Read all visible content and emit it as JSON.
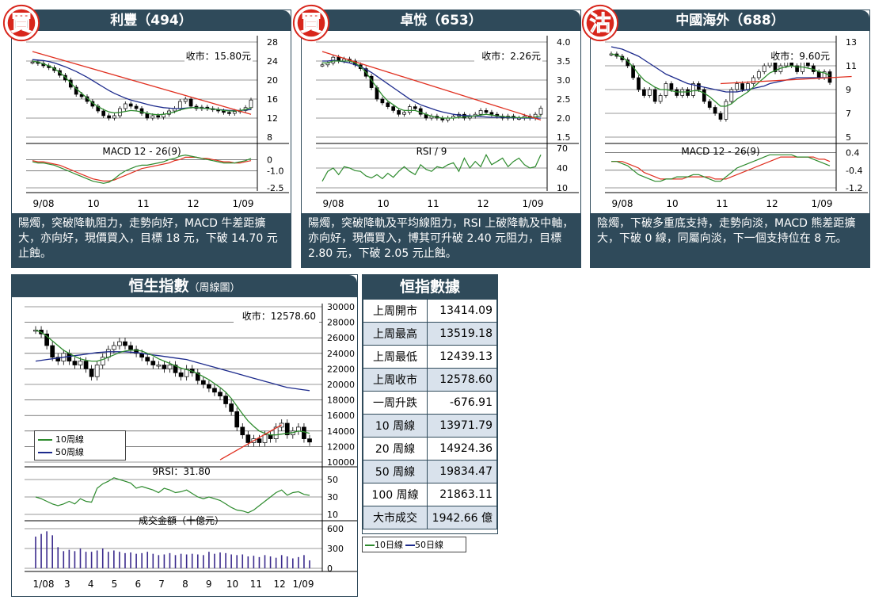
{
  "stocks": [
    {
      "badge": "買",
      "title": "利豐（494）",
      "close_label": "收市：15.80元",
      "indicator_label": "MACD 12 - 26(9)",
      "description": "陽燭，突破降軌阻力，走勢向好，MACD 牛差距擴大，亦向好，現價買入，目標 18 元，下破 14.70 元止蝕。",
      "x_ticks": [
        "9/08",
        "10",
        "11",
        "12",
        "1/09"
      ],
      "price_ticks": [
        "28",
        "24",
        "20",
        "16",
        "12",
        "8"
      ],
      "ind_ticks": [
        "0",
        "-1.0",
        "-2.5"
      ]
    },
    {
      "badge": "買",
      "title": "卓悅（653）",
      "close_label": "收市：2.26元",
      "indicator_label": "RSI / 9",
      "description": "陽燭，突破降軌及平均線阻力，RSI 上破降軌及中軸，亦向好，現價買入，博其可升破 2.40 元阻力，目標 2.80 元，下破 2.05 元止蝕。",
      "x_ticks": [
        "9/08",
        "10",
        "11",
        "12",
        "1/09"
      ],
      "price_ticks": [
        "4.0",
        "3.5",
        "3.0",
        "2.5",
        "2.0",
        "1.5"
      ],
      "ind_ticks": [
        "70",
        "40",
        "10"
      ]
    },
    {
      "badge": "沽",
      "title": "中國海外（688）",
      "close_label": "收市：9.60元",
      "indicator_label": "MACD 12 - 26(9)",
      "description": "陰燭，下破多重底支持，走勢向淡，MACD 熊差距擴大，下破 0 線，同屬向淡，下一個支持位在 8 元。",
      "x_ticks": [
        "9/08",
        "10",
        "11",
        "12",
        "1/09"
      ],
      "price_ticks": [
        "13",
        "11",
        "9",
        "7",
        "5"
      ],
      "ind_ticks": [
        "0.4",
        "-0.4",
        "-1.2"
      ]
    }
  ],
  "hsi": {
    "title": "恒生指數",
    "subtitle": "（周線圖）",
    "close_label": "收市：12578.60",
    "legend": [
      "10周線",
      "50周線"
    ],
    "rsi_label": "9RSI：31.80",
    "volume_label": "成交金額（十億元）",
    "price_ticks": [
      "30000",
      "28000",
      "26000",
      "24000",
      "22000",
      "20000",
      "18000",
      "16000",
      "14000",
      "12000",
      "10000"
    ],
    "rsi_ticks": [
      "50",
      "30",
      "10"
    ],
    "volume_ticks": [
      "600",
      "300",
      "0"
    ],
    "x_ticks": [
      "1/08",
      "3",
      "4",
      "5",
      "6",
      "7",
      "8",
      "9",
      "10",
      "11",
      "12",
      "1/09"
    ]
  },
  "stats": {
    "title": "恒指數據",
    "rows": [
      {
        "k": "上周開市",
        "v": "13414.09"
      },
      {
        "k": "上周最高",
        "v": "13519.18"
      },
      {
        "k": "上周最低",
        "v": "12439.13"
      },
      {
        "k": "上周收市",
        "v": "12578.60"
      },
      {
        "k": "一周升跌",
        "v": "-676.91"
      },
      {
        "k": "10 周線",
        "v": "13971.79"
      },
      {
        "k": "20 周線",
        "v": "14924.36"
      },
      {
        "k": "50 周線",
        "v": "19834.47"
      },
      {
        "k": "100 周線",
        "v": "21863.11"
      },
      {
        "k": "大市成交",
        "v": "1942.66 億"
      }
    ],
    "legend": [
      "10日線",
      "50日線"
    ]
  },
  "colors": {
    "panel": "#2f4a5a",
    "ma_short": "#2e8b2e",
    "ma_long": "#1c2a8c",
    "trend": "#e03020",
    "badge_red": "#d8261c"
  },
  "chart_data": [
    {
      "type": "candlestick",
      "title": "利豐（494）",
      "x_ticks": [
        "9/08",
        "10",
        "11",
        "12",
        "1/09"
      ],
      "ylim": [
        8,
        28
      ],
      "last_close": 15.8,
      "close_path": [
        23.8,
        23.5,
        23.0,
        22.6,
        22.0,
        21.0,
        20.0,
        18.5,
        17.0,
        16.5,
        15.5,
        14.5,
        13.5,
        12.5,
        12.0,
        12.5,
        14.0,
        15.0,
        14.5,
        14.0,
        13.0,
        12.0,
        12.5,
        12.2,
        12.8,
        13.5,
        14.0,
        15.5,
        16.0,
        14.5,
        14.0,
        14.3,
        14.0,
        13.8,
        13.5,
        13.2,
        13.0,
        13.4,
        13.6,
        14.2,
        15.8
      ],
      "ma_short": [
        24.0,
        23.8,
        23.4,
        23.0,
        22.4,
        21.6,
        20.6,
        19.4,
        18.2,
        17.2,
        16.2,
        15.2,
        14.4,
        13.8,
        13.3,
        13.1,
        13.2,
        13.4,
        13.6,
        13.5,
        13.3,
        13.0,
        12.8,
        12.7,
        12.8,
        13.0,
        13.3,
        13.7,
        14.0,
        14.2,
        14.2,
        14.1,
        14.0,
        13.9,
        13.8,
        13.6,
        13.5,
        13.5,
        13.6,
        13.8,
        14.2
      ],
      "ma_long": [
        24.3,
        24.2,
        24.1,
        23.9,
        23.6,
        23.2,
        22.8,
        22.3,
        21.8,
        21.2,
        20.6,
        19.9,
        19.2,
        18.5,
        17.8,
        17.2,
        16.7,
        16.2,
        15.8,
        15.5,
        15.2,
        14.9,
        14.6,
        14.4,
        14.2,
        14.1,
        14.0,
        14.0,
        14.1,
        14.2,
        14.2,
        14.1,
        14.0,
        13.9,
        13.8,
        13.7,
        13.6,
        13.6,
        13.6,
        13.7,
        13.8
      ],
      "trendline": [
        [
          0,
          26.0
        ],
        [
          40,
          12.8
        ]
      ],
      "indicator": "MACD 12 - 26(9)",
      "ind_ylim": [
        -2.5,
        1.0
      ],
      "macd": [
        -0.2,
        -0.3,
        -0.3,
        -0.4,
        -0.5,
        -0.7,
        -0.9,
        -1.1,
        -1.3,
        -1.5,
        -1.7,
        -1.9,
        -2.0,
        -2.1,
        -2.0,
        -1.7,
        -1.3,
        -1.0,
        -0.8,
        -0.6,
        -0.5,
        -0.5,
        -0.4,
        -0.3,
        -0.2,
        0.0,
        0.1,
        0.3,
        0.4,
        0.3,
        0.2,
        0.1,
        0.0,
        -0.1,
        -0.2,
        -0.3,
        -0.3,
        -0.3,
        -0.2,
        -0.1,
        0.1
      ],
      "signal": [
        -0.1,
        -0.2,
        -0.2,
        -0.3,
        -0.4,
        -0.5,
        -0.7,
        -0.9,
        -1.1,
        -1.3,
        -1.5,
        -1.7,
        -1.8,
        -1.9,
        -1.9,
        -1.8,
        -1.6,
        -1.4,
        -1.2,
        -1.0,
        -0.8,
        -0.7,
        -0.6,
        -0.5,
        -0.4,
        -0.3,
        -0.1,
        0.0,
        0.2,
        0.2,
        0.2,
        0.1,
        0.1,
        0.0,
        -0.1,
        -0.2,
        -0.2,
        -0.3,
        -0.3,
        -0.2,
        -0.1
      ]
    },
    {
      "type": "candlestick",
      "title": "卓悅（653）",
      "x_ticks": [
        "9/08",
        "10",
        "11",
        "12",
        "1/09"
      ],
      "ylim": [
        1.5,
        4.0
      ],
      "last_close": 2.26,
      "close_path": [
        3.4,
        3.45,
        3.6,
        3.5,
        3.55,
        3.5,
        3.4,
        3.3,
        3.1,
        2.8,
        2.5,
        2.4,
        2.3,
        2.2,
        2.1,
        2.15,
        2.3,
        2.25,
        2.1,
        2.0,
        2.05,
        2.0,
        1.95,
        2.0,
        2.05,
        2.1,
        2.0,
        2.05,
        2.1,
        2.2,
        2.15,
        2.1,
        2.05,
        2.0,
        2.05,
        2.0,
        2.0,
        2.05,
        2.0,
        2.1,
        2.26
      ],
      "ma_short": [
        3.45,
        3.45,
        3.5,
        3.5,
        3.5,
        3.5,
        3.45,
        3.35,
        3.2,
        3.0,
        2.8,
        2.6,
        2.45,
        2.35,
        2.25,
        2.2,
        2.2,
        2.2,
        2.15,
        2.1,
        2.05,
        2.02,
        2.0,
        2.0,
        2.0,
        2.02,
        2.03,
        2.04,
        2.06,
        2.08,
        2.1,
        2.08,
        2.06,
        2.04,
        2.03,
        2.02,
        2.01,
        2.01,
        2.01,
        2.03,
        2.06
      ],
      "ma_long": [
        3.5,
        3.5,
        3.52,
        3.5,
        3.48,
        3.45,
        3.4,
        3.35,
        3.28,
        3.2,
        3.1,
        3.0,
        2.9,
        2.8,
        2.7,
        2.6,
        2.5,
        2.42,
        2.35,
        2.3,
        2.25,
        2.2,
        2.16,
        2.13,
        2.1,
        2.08,
        2.07,
        2.06,
        2.05,
        2.04,
        2.03,
        2.02,
        2.02,
        2.02,
        2.01,
        2.01,
        2.0,
        2.0,
        2.0,
        2.0,
        2.0
      ],
      "trendline": [
        [
          0,
          3.75
        ],
        [
          40,
          1.95
        ]
      ],
      "indicator": "RSI / 9",
      "ind_ylim": [
        10,
        70
      ],
      "rsi": [
        20,
        35,
        40,
        30,
        42,
        40,
        36,
        35,
        28,
        25,
        30,
        24,
        32,
        26,
        35,
        42,
        35,
        30,
        45,
        38,
        35,
        42,
        40,
        45,
        48,
        35,
        55,
        40,
        50,
        42,
        60,
        45,
        50,
        55,
        42,
        50,
        55,
        45,
        40,
        42,
        60
      ]
    },
    {
      "type": "candlestick",
      "title": "中國海外（688）",
      "x_ticks": [
        "9/08",
        "10",
        "11",
        "12",
        "1/09"
      ],
      "ylim": [
        5,
        13
      ],
      "last_close": 9.6,
      "close_path": [
        12.0,
        11.8,
        11.5,
        11.0,
        10.0,
        9.0,
        8.5,
        9.0,
        8.0,
        8.5,
        9.5,
        9.0,
        8.5,
        9.0,
        8.5,
        9.5,
        9.0,
        8.0,
        7.5,
        7.0,
        6.5,
        8.0,
        9.0,
        9.5,
        9.0,
        9.5,
        10.0,
        10.5,
        11.0,
        11.5,
        10.5,
        11.0,
        11.5,
        11.0,
        10.5,
        11.5,
        11.0,
        10.5,
        10.0,
        10.5,
        9.6
      ],
      "ma_short": [
        12.0,
        11.9,
        11.7,
        11.4,
        10.9,
        10.3,
        9.8,
        9.5,
        9.2,
        9.0,
        9.0,
        8.9,
        8.8,
        8.8,
        8.8,
        8.9,
        8.9,
        8.7,
        8.4,
        8.0,
        7.6,
        7.6,
        7.8,
        8.2,
        8.5,
        8.8,
        9.2,
        9.6,
        10.0,
        10.4,
        10.6,
        10.8,
        10.9,
        11.0,
        10.9,
        10.9,
        10.8,
        10.7,
        10.5,
        10.4,
        10.2
      ],
      "ma_long": [
        12.6,
        12.5,
        12.4,
        12.2,
        12.0,
        11.8,
        11.5,
        11.2,
        10.9,
        10.6,
        10.3,
        10.1,
        9.9,
        9.7,
        9.5,
        9.4,
        9.3,
        9.2,
        9.1,
        9.0,
        8.9,
        8.8,
        8.8,
        8.8,
        8.9,
        9.0,
        9.1,
        9.2,
        9.3,
        9.5,
        9.6,
        9.7,
        9.8,
        9.9,
        10.0,
        10.0,
        10.0,
        10.0,
        10.0,
        10.0,
        10.0
      ],
      "trendline": [
        [
          20,
          9.5
        ],
        [
          46,
          10.1
        ]
      ],
      "indicator": "MACD 12 - 26(9)",
      "ind_ylim": [
        -1.2,
        0.6
      ],
      "macd": [
        0.0,
        0.0,
        -0.1,
        -0.2,
        -0.4,
        -0.6,
        -0.7,
        -0.8,
        -0.9,
        -0.9,
        -0.8,
        -0.8,
        -0.7,
        -0.7,
        -0.7,
        -0.6,
        -0.6,
        -0.7,
        -0.8,
        -0.9,
        -0.9,
        -0.7,
        -0.5,
        -0.3,
        -0.2,
        -0.1,
        0.0,
        0.1,
        0.2,
        0.3,
        0.3,
        0.3,
        0.3,
        0.3,
        0.2,
        0.2,
        0.2,
        0.1,
        0.0,
        -0.1,
        -0.2
      ],
      "signal": [
        0.0,
        0.0,
        0.0,
        -0.1,
        -0.2,
        -0.3,
        -0.5,
        -0.6,
        -0.7,
        -0.8,
        -0.8,
        -0.8,
        -0.8,
        -0.8,
        -0.7,
        -0.7,
        -0.7,
        -0.7,
        -0.7,
        -0.8,
        -0.8,
        -0.8,
        -0.7,
        -0.6,
        -0.5,
        -0.4,
        -0.3,
        -0.2,
        -0.1,
        0.0,
        0.1,
        0.2,
        0.2,
        0.2,
        0.2,
        0.2,
        0.2,
        0.2,
        0.1,
        0.1,
        0.0
      ]
    },
    {
      "type": "candlestick",
      "title": "恒生指數",
      "x_ticks": [
        "1/08",
        "3",
        "4",
        "5",
        "6",
        "7",
        "8",
        "9",
        "10",
        "11",
        "12",
        "1/09"
      ],
      "ylim": [
        10000,
        30000
      ],
      "last_close": 12578.6,
      "close_path": [
        27000,
        26500,
        25000,
        23500,
        23000,
        24000,
        23000,
        22500,
        23000,
        22000,
        21000,
        22500,
        23500,
        24500,
        25000,
        25500,
        25000,
        24500,
        24000,
        23500,
        23000,
        22500,
        22500,
        22000,
        22500,
        21500,
        21000,
        22000,
        21500,
        20500,
        20000,
        19500,
        19000,
        18500,
        17500,
        16500,
        14500,
        13500,
        12500,
        13000,
        12500,
        13500,
        13000,
        14500,
        15000,
        13500,
        14000,
        14500,
        13000,
        12578.6
      ],
      "ma_short": [
        27000,
        26700,
        26200,
        25600,
        25000,
        24400,
        24000,
        23600,
        23300,
        23100,
        23000,
        23000,
        23200,
        23500,
        23800,
        24100,
        24300,
        24400,
        24400,
        24300,
        24000,
        23700,
        23300,
        23000,
        22700,
        22400,
        22100,
        21900,
        21700,
        21400,
        21000,
        20600,
        20100,
        19600,
        19000,
        18200,
        17200,
        16200,
        15300,
        14600,
        14000,
        13700,
        13500,
        13500,
        13600,
        13700,
        13800,
        14000,
        13900,
        13700
      ],
      "ma_long": [
        23000,
        23100,
        23200,
        23300,
        23400,
        23500,
        23600,
        23700,
        23800,
        23900,
        24000,
        24100,
        24150,
        24200,
        24200,
        24200,
        24200,
        24150,
        24100,
        24000,
        23900,
        23800,
        23700,
        23600,
        23500,
        23400,
        23300,
        23200,
        23000,
        22800,
        22600,
        22400,
        22200,
        22000,
        21800,
        21600,
        21400,
        21200,
        21000,
        20800,
        20600,
        20400,
        20200,
        20000,
        19800,
        19600,
        19500,
        19400,
        19300,
        19200
      ],
      "trendline": [
        [
          33,
          10300
        ],
        [
          44,
          14800
        ]
      ],
      "rsi_label": "9RSI：31.80",
      "rsi": [
        30,
        28,
        25,
        22,
        20,
        22,
        25,
        22,
        28,
        25,
        24,
        40,
        45,
        48,
        52,
        50,
        48,
        46,
        40,
        42,
        40,
        38,
        35,
        40,
        38,
        35,
        36,
        38,
        34,
        30,
        28,
        30,
        28,
        26,
        22,
        18,
        15,
        14,
        12,
        15,
        20,
        25,
        30,
        35,
        38,
        32,
        35,
        36,
        33,
        31.8
      ],
      "volume_ylim": [
        0,
        600
      ],
      "volume": [
        480,
        520,
        560,
        500,
        320,
        260,
        280,
        260,
        300,
        250,
        250,
        270,
        300,
        250,
        270,
        250,
        230,
        240,
        220,
        230,
        250,
        220,
        200,
        210,
        230,
        200,
        220,
        210,
        220,
        210,
        200,
        250,
        220,
        240,
        230,
        210,
        200,
        210,
        180,
        190,
        170,
        200,
        180,
        160,
        200,
        180,
        150,
        170,
        200,
        120
      ]
    }
  ]
}
